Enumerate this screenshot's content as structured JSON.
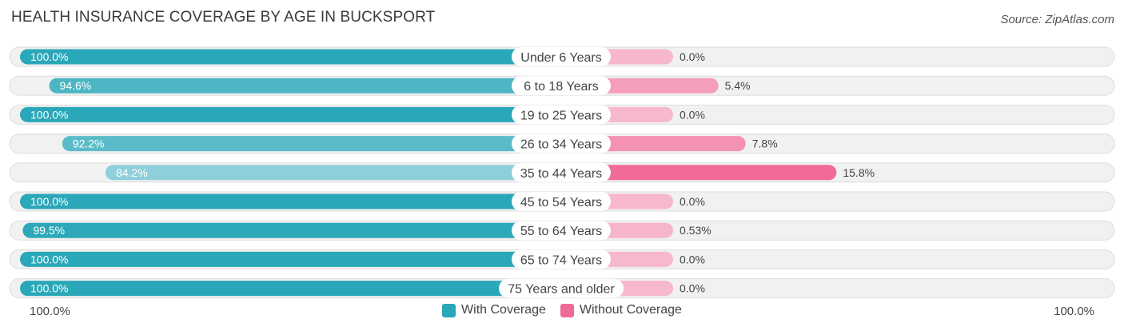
{
  "title": "HEALTH INSURANCE COVERAGE BY AGE IN BUCKSPORT",
  "source": "Source: ZipAtlas.com",
  "axis": {
    "left_label": "100.0%",
    "right_label": "100.0%"
  },
  "legend": [
    {
      "label": "With Coverage",
      "color": "#2aa7b8"
    },
    {
      "label": "Without Coverage",
      "color": "#f06a96"
    }
  ],
  "chart_data": {
    "type": "bar",
    "title": "HEALTH INSURANCE COVERAGE BY AGE IN BUCKSPORT",
    "categories": [
      "Under 6 Years",
      "6 to 18 Years",
      "19 to 25 Years",
      "26 to 34 Years",
      "35 to 44 Years",
      "45 to 54 Years",
      "55 to 64 Years",
      "65 to 74 Years",
      "75 Years and older"
    ],
    "series": [
      {
        "name": "With Coverage",
        "values": [
          100.0,
          94.6,
          100.0,
          92.2,
          84.2,
          100.0,
          99.5,
          100.0,
          100.0
        ],
        "labels": [
          "100.0%",
          "94.6%",
          "100.0%",
          "92.2%",
          "84.2%",
          "100.0%",
          "99.5%",
          "100.0%",
          "100.0%"
        ]
      },
      {
        "name": "Without Coverage",
        "values": [
          0.0,
          5.4,
          0.0,
          7.8,
          15.8,
          0.0,
          0.53,
          0.0,
          0.0
        ],
        "labels": [
          "0.0%",
          "5.4%",
          "0.0%",
          "7.8%",
          "15.8%",
          "0.0%",
          "0.53%",
          "0.0%",
          "0.0%"
        ]
      }
    ],
    "xlim": [
      0,
      100
    ],
    "legend_position": "bottom-center"
  }
}
